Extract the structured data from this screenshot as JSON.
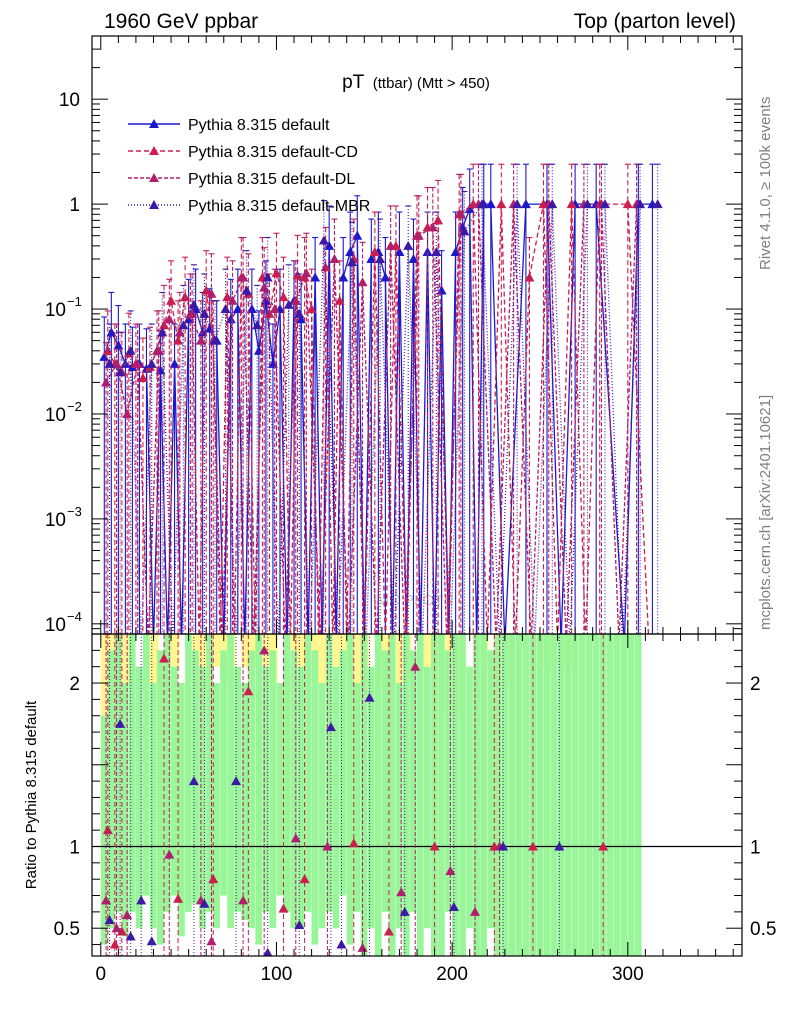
{
  "header": {
    "left": "1960 GeV ppbar",
    "right": "Top (parton level)"
  },
  "side_labels": {
    "rivet": "Rivet 4.1.0, ≥ 100k events",
    "source": "mcplots.cern.ch [arXiv:2401.10621]"
  },
  "watermark": "MC PLOTS",
  "chart_data": {
    "type": "line",
    "title_main": "pT",
    "title_sub": "(ttbar) (Mtt > 450)",
    "xlim": [
      -5,
      365
    ],
    "x_ticks": [
      0,
      100,
      200,
      300
    ],
    "x_tick_labels": [
      "0",
      "100",
      "200",
      "300"
    ],
    "upper": {
      "yscale": "log",
      "ylim": [
        8e-05,
        40
      ],
      "y_ticks": [
        0.0001,
        0.001,
        0.01,
        0.1,
        1,
        10
      ],
      "y_tick_labels": [
        [
          "10",
          "−4"
        ],
        [
          "10",
          "−3"
        ],
        [
          "10",
          "−2"
        ],
        [
          "10",
          "−1"
        ],
        [
          "1",
          ""
        ],
        [
          "10",
          ""
        ]
      ]
    },
    "lower": {
      "ylabel": "Ratio to Pythia 8.315 default",
      "ylim": [
        0.33,
        2.3
      ],
      "y_ticks": [
        0.5,
        1,
        2
      ],
      "y_tick_labels": [
        "0.5",
        "1",
        "2"
      ],
      "reference_line": 1
    },
    "legend": [
      "Pythia 8.315 default",
      "Pythia 8.315 default-CD",
      "Pythia 8.315 default-DL",
      "Pythia 8.315 default-MBR"
    ],
    "series": [
      {
        "name": "Pythia 8.315 default",
        "color": "#1a1acc",
        "dash": "",
        "x": [
          2,
          6,
          10,
          14,
          18,
          22,
          26,
          30,
          34,
          38,
          42,
          46,
          50,
          54,
          58,
          62,
          66,
          70,
          74,
          78,
          82,
          86,
          90,
          94,
          98,
          102,
          106,
          110,
          114,
          118,
          122,
          126,
          130,
          134,
          138,
          142,
          146,
          150,
          154,
          158,
          162,
          166,
          170,
          174,
          178,
          182,
          186,
          190,
          194,
          198,
          202,
          206,
          210,
          214,
          218,
          222,
          230,
          242,
          254,
          262,
          270,
          282,
          298,
          306,
          314
        ],
        "y": [
          0.035,
          0.06,
          0.045,
          0.03,
          0.028,
          0.03,
          0.027,
          0,
          0.026,
          0,
          0.03,
          0,
          0.08,
          0.1,
          0.06,
          0.065,
          0.05,
          0,
          0.08,
          0.1,
          0,
          0.1,
          0.04,
          0.12,
          0.03,
          0.1,
          0,
          0.12,
          0.08,
          0,
          0.2,
          0,
          0.4,
          0,
          0.2,
          0.35,
          0.5,
          0,
          0.3,
          0.35,
          0.2,
          0,
          0.35,
          0,
          0.3,
          0,
          0.35,
          0,
          0.15,
          0,
          0.35,
          0.6,
          0.9,
          0,
          1.0,
          1.0,
          0,
          1.0,
          1.0,
          0,
          1.0,
          1.0,
          0,
          1.0,
          1.0
        ]
      },
      {
        "name": "Pythia 8.315 default-CD",
        "color": "#cc1f4d",
        "dash": "5,3",
        "x": [
          4,
          8,
          12,
          16,
          20,
          24,
          28,
          32,
          36,
          40,
          44,
          48,
          52,
          56,
          60,
          64,
          68,
          72,
          76,
          80,
          84,
          88,
          92,
          96,
          100,
          104,
          108,
          112,
          116,
          120,
          124,
          128,
          132,
          136,
          140,
          144,
          150,
          156,
          162,
          168,
          174,
          180,
          186,
          192,
          198,
          204,
          212,
          220,
          228,
          236,
          244,
          252,
          260,
          268,
          276,
          284,
          300,
          312,
          352
        ],
        "y": [
          0.04,
          0.03,
          0.025,
          0.038,
          0.03,
          0.022,
          0.028,
          0.04,
          0.07,
          0.12,
          0.05,
          0.13,
          0.09,
          0,
          0.15,
          0.05,
          0,
          0.13,
          0,
          0.2,
          0.14,
          0,
          0.2,
          0.09,
          0.22,
          0.13,
          0,
          0.21,
          0.2,
          0.1,
          0,
          0.25,
          0,
          0.12,
          0,
          0.3,
          0,
          0.35,
          0,
          0.4,
          0,
          0.5,
          0.6,
          0.7,
          0,
          0.8,
          1.0,
          0,
          1.0,
          0,
          0.2,
          1.0,
          0,
          1.0,
          0,
          1.0,
          1.0,
          0,
          0
        ]
      },
      {
        "name": "Pythia 8.315 default-DL",
        "color": "#b01f6b",
        "dash": "4,2",
        "x": [
          3,
          9,
          15,
          21,
          27,
          33,
          39,
          45,
          51,
          57,
          63,
          69,
          75,
          81,
          87,
          93,
          99,
          105,
          111,
          117,
          125,
          133,
          141,
          149,
          157,
          165,
          173,
          181,
          189,
          197,
          205,
          215,
          225,
          235,
          245,
          255,
          265,
          275,
          285,
          295,
          305
        ],
        "y": [
          0.02,
          0.03,
          0.01,
          0.03,
          0,
          0.04,
          0.08,
          0.06,
          0.09,
          0.05,
          0.14,
          0,
          0.12,
          0.2,
          0,
          0.16,
          0.1,
          0,
          0.12,
          0.22,
          0,
          0.3,
          0,
          0.18,
          0,
          0.4,
          0,
          0.5,
          0.6,
          0,
          0.8,
          1.0,
          0,
          1.0,
          0,
          1.0,
          0,
          1.0,
          1.0,
          0,
          1.0
        ]
      },
      {
        "name": "Pythia 8.315 default-MBR",
        "color": "#3d1aa6",
        "dash": "1,2",
        "x": [
          5,
          11,
          17,
          23,
          29,
          35,
          41,
          47,
          53,
          59,
          65,
          71,
          77,
          83,
          89,
          95,
          101,
          107,
          113,
          119,
          127,
          135,
          143,
          151,
          159,
          167,
          175,
          183,
          191,
          199,
          207,
          217,
          227,
          237,
          247,
          257,
          267,
          277,
          287,
          297,
          307,
          317
        ],
        "y": [
          0.03,
          0.025,
          0.04,
          0,
          0.03,
          0.06,
          0,
          0.07,
          0.11,
          0.09,
          0.05,
          0.1,
          0,
          0.15,
          0.07,
          0.2,
          0,
          0.11,
          0.09,
          0,
          0.45,
          0,
          0.28,
          0,
          0.3,
          0,
          0.4,
          0,
          0.35,
          0,
          0.55,
          1.0,
          0,
          1.0,
          0,
          1.0,
          0,
          1.0,
          1.0,
          0,
          1.0,
          1.0
        ]
      }
    ],
    "ratio_series": [
      {
        "name": "Pythia 8.315 default-CD",
        "x": [
          4,
          8,
          12,
          36,
          44,
          64,
          84,
          104,
          116,
          144,
          164,
          190,
          224,
          246,
          286
        ],
        "y": [
          1.1,
          0.4,
          0.48,
          2.15,
          0.68,
          0.8,
          1.95,
          0.62,
          0.8,
          1.02,
          0.48,
          1.0,
          1.0,
          1.0,
          1.0
        ]
      },
      {
        "name": "Pythia 8.315 default-DL",
        "x": [
          3,
          9,
          15,
          39,
          57,
          63,
          81,
          93,
          111,
          129,
          149,
          171,
          179,
          199,
          213,
          227
        ],
        "y": [
          0.67,
          0.5,
          0.58,
          0.95,
          0.67,
          0.42,
          0.67,
          2.2,
          1.05,
          1.0,
          0.38,
          0.72,
          2.1,
          0.85,
          0.6,
          1.0
        ]
      },
      {
        "name": "Pythia 8.315 default-MBR",
        "x": [
          5,
          11,
          17,
          23,
          29,
          53,
          59,
          77,
          95,
          113,
          131,
          137,
          153,
          173,
          201,
          229,
          261
        ],
        "y": [
          0.55,
          1.75,
          0.45,
          0.67,
          0.42,
          1.4,
          0.65,
          1.4,
          0.35,
          0.52,
          1.73,
          0.4,
          1.91,
          0.6,
          0.63,
          1.0,
          1.0
        ]
      }
    ],
    "uncertainty_bands": {
      "green_x": [
        2,
        6,
        10,
        14,
        18,
        22,
        26,
        30,
        34,
        38,
        42,
        46,
        50,
        54,
        58,
        62,
        66,
        70,
        74,
        78,
        82,
        86,
        90,
        94,
        98,
        102,
        106,
        110,
        114,
        118,
        122,
        126,
        130,
        134,
        138,
        142,
        146,
        150,
        154,
        158,
        162,
        166,
        170,
        174,
        178,
        182,
        186,
        190,
        194,
        198,
        202,
        206,
        210,
        214,
        218,
        222,
        226,
        230,
        234,
        238,
        242,
        246,
        250,
        254,
        258,
        262,
        266,
        270,
        274,
        278,
        282,
        286,
        290,
        294,
        298,
        302,
        306
      ],
      "green_lo": [
        0.4,
        0.5,
        0.6,
        0.45,
        0.6,
        0.5,
        0.7,
        0.5,
        0.4,
        0.6,
        0.7,
        0.45,
        0.6,
        0.65,
        0.5,
        0.6,
        0.5,
        0.7,
        0.5,
        0.6,
        0.55,
        0.5,
        0.4,
        0.6,
        0.5,
        0.7,
        0.6,
        0.5,
        0.5,
        0.6,
        0.4,
        0.5,
        0.6,
        0.5,
        0.7,
        0.4,
        0.6,
        0.33,
        0.5,
        0.33,
        0.6,
        0.33,
        0.5,
        0.33,
        0.6,
        0.33,
        0.5,
        0.33,
        0.33,
        0.6,
        0.33,
        0.33,
        0.5,
        0.33,
        0.33,
        0.5,
        0.33,
        0.33,
        0.33,
        0.33,
        0.33,
        0.33,
        0.33,
        0.33,
        0.33,
        0.33,
        0.33,
        0.33,
        0.33,
        0.33,
        0.33,
        0.33,
        0.33,
        0.33,
        0.33,
        0.33,
        0.33
      ],
      "green_hi": [
        1.8,
        2.2,
        2.3,
        2.0,
        2.3,
        2.1,
        2.3,
        2.0,
        2.2,
        2.3,
        2.1,
        2.0,
        2.3,
        2.2,
        2.1,
        2.3,
        2.0,
        2.2,
        2.3,
        2.1,
        2.0,
        2.2,
        2.3,
        2.1,
        2.2,
        2.0,
        2.3,
        2.2,
        2.1,
        2.3,
        2.2,
        2.0,
        2.3,
        2.1,
        2.2,
        2.3,
        2.0,
        2.3,
        2.1,
        2.3,
        2.2,
        2.3,
        2.0,
        2.3,
        2.2,
        2.3,
        2.1,
        2.3,
        2.3,
        2.2,
        2.3,
        2.3,
        2.1,
        2.3,
        2.3,
        2.2,
        2.3,
        2.3,
        2.3,
        2.3,
        2.3,
        2.3,
        2.3,
        2.3,
        2.3,
        2.3,
        2.3,
        2.3,
        2.3,
        2.3,
        2.3,
        2.3,
        2.3,
        2.3,
        2.3,
        2.3,
        2.3
      ],
      "yellow_x": [
        2,
        10,
        26,
        38,
        54,
        62,
        70,
        82,
        94,
        110,
        122,
        134,
        146,
        158,
        170,
        186,
        198,
        214,
        226,
        250,
        262
      ],
      "yellow_lo": [
        1.8,
        2.0,
        2.0,
        2.1,
        1.9,
        2.1,
        2.0,
        2.1,
        2.0,
        2.1,
        2.0,
        2.1,
        1.9,
        2.0,
        2.0,
        2.1,
        1.8,
        2.1,
        2.0,
        2.1,
        2.1
      ],
      "yellow_hi": [
        2.3,
        2.3,
        2.3,
        2.3,
        2.3,
        2.3,
        2.3,
        2.3,
        2.3,
        2.3,
        2.3,
        2.3,
        2.3,
        2.3,
        2.3,
        2.3,
        2.3,
        2.3,
        2.3,
        2.3,
        2.3
      ]
    }
  }
}
